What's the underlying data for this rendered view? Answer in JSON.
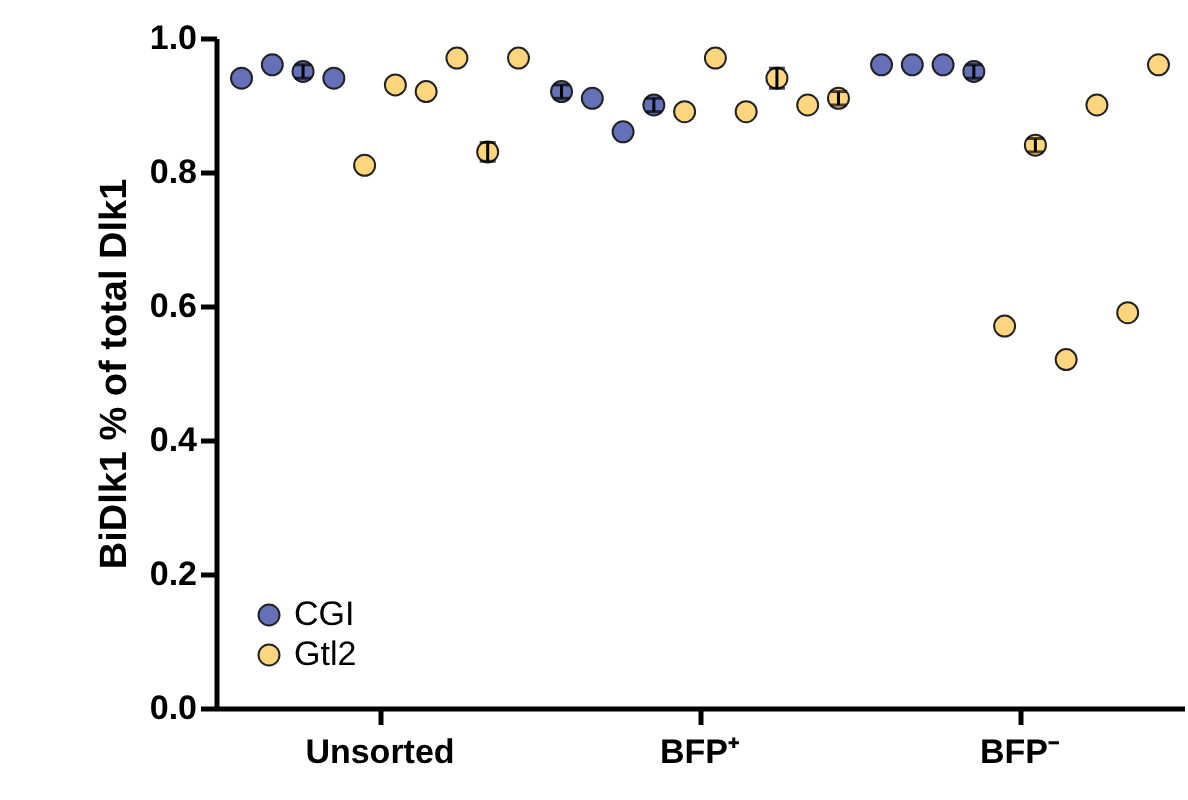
{
  "chart_data": {
    "type": "scatter",
    "ylabel": "BiDlk1 % of total Dlk1",
    "categories": [
      "Unsorted",
      "BFP⁺",
      "BFP⁻"
    ],
    "ylim": [
      0,
      1
    ],
    "yticks": [
      {
        "value": 0,
        "label": "0.0"
      },
      {
        "value": 0.2,
        "label": "0.2"
      },
      {
        "value": 0.4,
        "label": "0.4"
      },
      {
        "value": 0.6,
        "label": "0.6"
      },
      {
        "value": 0.8,
        "label": "0.8"
      },
      {
        "value": 1,
        "label": "1.0"
      }
    ],
    "grid": false,
    "legend": "bottom left",
    "marker": "circle",
    "series": [
      {
        "name": "CGI",
        "color": "#6470b8",
        "x": [
          "Unsorted",
          "Unsorted",
          "Unsorted",
          "Unsorted",
          "BFP⁺",
          "BFP⁺",
          "BFP⁺",
          "BFP⁺",
          "BFP⁻",
          "BFP⁻",
          "BFP⁻",
          "BFP⁻"
        ],
        "values": [
          0.94,
          0.96,
          0.95,
          0.94,
          0.92,
          0.91,
          0.86,
          0.9,
          0.96,
          0.96,
          0.96,
          0.95
        ],
        "errors": [
          null,
          null,
          0.01,
          null,
          0.01,
          null,
          null,
          0.01,
          null,
          null,
          null,
          0.01
        ]
      },
      {
        "name": "Gtl2",
        "color": "#fdd57e",
        "x": [
          "Unsorted",
          "Unsorted",
          "Unsorted",
          "Unsorted",
          "Unsorted",
          "Unsorted",
          "BFP⁺",
          "BFP⁺",
          "BFP⁺",
          "BFP⁺",
          "BFP⁺",
          "BFP⁺",
          "BFP⁻",
          "BFP⁻",
          "BFP⁻",
          "BFP⁻",
          "BFP⁻",
          "BFP⁻"
        ],
        "values": [
          0.81,
          0.93,
          0.92,
          0.97,
          0.83,
          0.97,
          0.89,
          0.97,
          0.89,
          0.94,
          0.9,
          0.91,
          0.57,
          0.84,
          0.52,
          0.9,
          0.59,
          0.96
        ],
        "errors": [
          null,
          null,
          null,
          null,
          0.014,
          null,
          null,
          null,
          null,
          0.015,
          null,
          0.01,
          null,
          0.01,
          null,
          null,
          null,
          null
        ]
      }
    ]
  }
}
